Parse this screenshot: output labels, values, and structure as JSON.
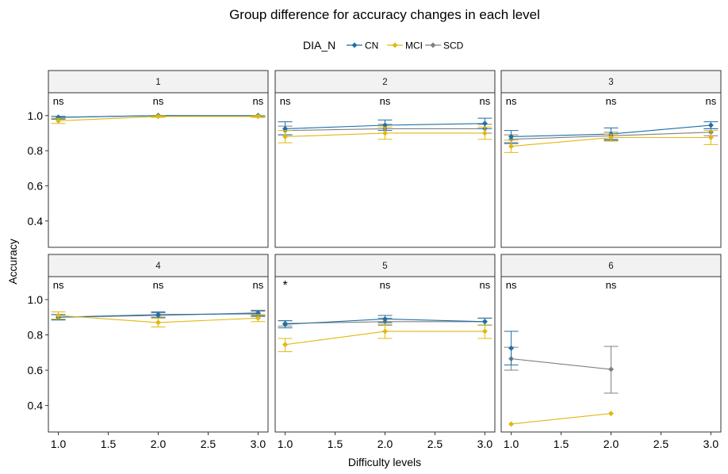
{
  "chart_data": {
    "type": "line",
    "title": "Group difference for accuracy changes in each level",
    "xlabel": "Difficulty levels",
    "ylabel": "Accuracy",
    "legend": {
      "title": "DIA_N",
      "placement": "top",
      "entries": [
        "CN",
        "MCI",
        "SCD"
      ]
    },
    "colors": {
      "CN": "#1f6ea6",
      "MCI": "#e2b80f",
      "SCD": "#808080"
    },
    "xlim": [
      0.9,
      3.1
    ],
    "x_ticks": [
      1.0,
      1.5,
      2.0,
      2.5,
      3.0
    ],
    "x_tick_labels": [
      "1.0",
      "1.5",
      "2.0",
      "2.5",
      "3.0"
    ],
    "ylim": [
      0.25,
      1.13
    ],
    "y_ticks": [
      0.4,
      0.6,
      0.8,
      1.0
    ],
    "y_tick_labels": [
      "0.4",
      "0.6",
      "0.8",
      "1.0"
    ],
    "grid": false,
    "facets": [
      {
        "label": "1",
        "significance": [
          "ns",
          "ns",
          "ns"
        ],
        "series": [
          {
            "name": "CN",
            "x": [
              1,
              2,
              3
            ],
            "y": [
              0.99,
              1.0,
              1.0
            ],
            "lower": [
              0.98,
              0.995,
              0.993
            ],
            "upper": [
              0.995,
              1.0,
              1.0
            ]
          },
          {
            "name": "MCI",
            "x": [
              1,
              2,
              3
            ],
            "y": [
              0.97,
              0.995,
              0.995
            ],
            "lower": [
              0.955,
              0.99,
              0.99
            ],
            "upper": [
              0.985,
              1.0,
              1.0
            ]
          },
          {
            "name": "SCD",
            "x": [
              1,
              2,
              3
            ],
            "y": [
              0.99,
              1.0,
              0.998
            ],
            "lower": [
              0.98,
              0.995,
              0.993
            ],
            "upper": [
              0.995,
              1.0,
              1.0
            ]
          }
        ]
      },
      {
        "label": "2",
        "significance": [
          "ns",
          "ns",
          "ns"
        ],
        "series": [
          {
            "name": "CN",
            "x": [
              1,
              2,
              3
            ],
            "y": [
              0.925,
              0.945,
              0.955
            ],
            "lower": [
              0.89,
              0.915,
              0.925
            ],
            "upper": [
              0.965,
              0.975,
              0.985
            ]
          },
          {
            "name": "MCI",
            "x": [
              1,
              2,
              3
            ],
            "y": [
              0.88,
              0.9,
              0.9
            ],
            "lower": [
              0.845,
              0.865,
              0.865
            ],
            "upper": [
              0.915,
              0.935,
              0.935
            ]
          },
          {
            "name": "SCD",
            "x": [
              1,
              2,
              3
            ],
            "y": [
              0.915,
              0.925,
              0.925
            ],
            "lower": [
              0.89,
              0.9,
              0.9
            ],
            "upper": [
              0.94,
              0.95,
              0.95
            ]
          }
        ]
      },
      {
        "label": "3",
        "significance": [
          "ns",
          "ns",
          "ns"
        ],
        "series": [
          {
            "name": "CN",
            "x": [
              1,
              2,
              3
            ],
            "y": [
              0.88,
              0.895,
              0.945
            ],
            "lower": [
              0.845,
              0.86,
              0.925
            ],
            "upper": [
              0.915,
              0.93,
              0.965
            ]
          },
          {
            "name": "MCI",
            "x": [
              1,
              2,
              3
            ],
            "y": [
              0.825,
              0.875,
              0.875
            ],
            "lower": [
              0.79,
              0.855,
              0.835
            ],
            "upper": [
              0.86,
              0.895,
              0.915
            ]
          },
          {
            "name": "SCD",
            "x": [
              1,
              2,
              3
            ],
            "y": [
              0.865,
              0.885,
              0.905
            ],
            "lower": [
              0.84,
              0.865,
              0.885
            ],
            "upper": [
              0.89,
              0.905,
              0.925
            ]
          }
        ]
      },
      {
        "label": "4",
        "significance": [
          "ns",
          "ns",
          "ns"
        ],
        "series": [
          {
            "name": "CN",
            "x": [
              1,
              2,
              3
            ],
            "y": [
              0.9,
              0.915,
              0.92
            ],
            "lower": [
              0.885,
              0.9,
              0.905
            ],
            "upper": [
              0.915,
              0.93,
              0.935
            ]
          },
          {
            "name": "MCI",
            "x": [
              1,
              2,
              3
            ],
            "y": [
              0.91,
              0.87,
              0.895
            ],
            "lower": [
              0.89,
              0.845,
              0.875
            ],
            "upper": [
              0.93,
              0.895,
              0.915
            ]
          },
          {
            "name": "SCD",
            "x": [
              1,
              2,
              3
            ],
            "y": [
              0.9,
              0.91,
              0.925
            ],
            "lower": [
              0.885,
              0.895,
              0.91
            ],
            "upper": [
              0.915,
              0.925,
              0.94
            ]
          }
        ]
      },
      {
        "label": "5",
        "significance": [
          "*",
          "ns",
          "ns"
        ],
        "series": [
          {
            "name": "CN",
            "x": [
              1,
              2,
              3
            ],
            "y": [
              0.86,
              0.89,
              0.875
            ],
            "lower": [
              0.84,
              0.87,
              0.855
            ],
            "upper": [
              0.88,
              0.91,
              0.895
            ]
          },
          {
            "name": "MCI",
            "x": [
              1,
              2,
              3
            ],
            "y": [
              0.745,
              0.82,
              0.82
            ],
            "lower": [
              0.705,
              0.78,
              0.78
            ],
            "upper": [
              0.78,
              0.86,
              0.855
            ]
          },
          {
            "name": "SCD",
            "x": [
              1,
              2,
              3
            ],
            "y": [
              0.865,
              0.875,
              0.875
            ],
            "lower": [
              0.85,
              0.855,
              0.855
            ],
            "upper": [
              0.88,
              0.895,
              0.895
            ]
          }
        ]
      },
      {
        "label": "6",
        "significance": [
          "ns",
          "ns"
        ],
        "series": [
          {
            "name": "CN",
            "x": [
              1
            ],
            "y": [
              0.725
            ],
            "lower": [
              0.63
            ],
            "upper": [
              0.82
            ]
          },
          {
            "name": "MCI",
            "x": [
              1,
              2
            ],
            "y": [
              0.295,
              0.355
            ],
            "lower": [
              0.295,
              0.355
            ],
            "upper": [
              0.295,
              0.355
            ]
          },
          {
            "name": "SCD",
            "x": [
              1,
              2
            ],
            "y": [
              0.665,
              0.605
            ],
            "lower": [
              0.6,
              0.47
            ],
            "upper": [
              0.73,
              0.735
            ]
          }
        ]
      }
    ]
  }
}
